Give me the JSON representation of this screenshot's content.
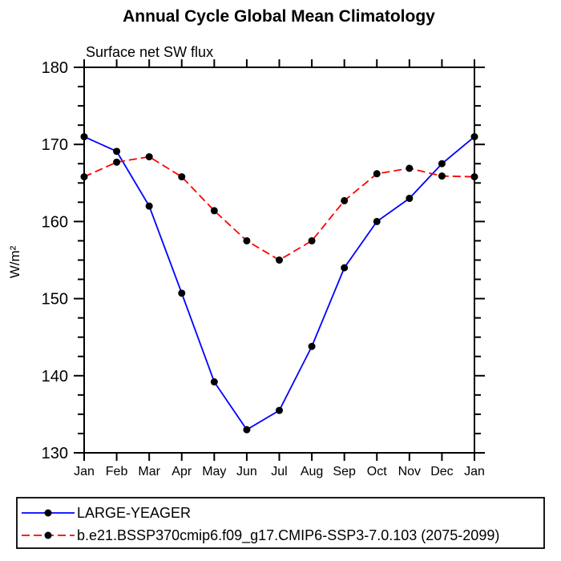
{
  "chart_data": {
    "type": "line",
    "title": "Annual Cycle Global Mean Climatology",
    "subtitle": "Surface net SW flux",
    "ylabel": "W/m²",
    "xlabel": "",
    "categories": [
      "Jan",
      "Feb",
      "Mar",
      "Apr",
      "May",
      "Jun",
      "Jul",
      "Aug",
      "Sep",
      "Oct",
      "Nov",
      "Dec",
      "Jan"
    ],
    "ylim": [
      130,
      180
    ],
    "ytick_interval": 10,
    "ytick_minor_interval": 2.5,
    "grid": false,
    "legend_position": "bottom",
    "axis_color": "#000000",
    "marker_color": "#000000",
    "series": [
      {
        "name": "LARGE-YEAGER",
        "color": "#0000ff",
        "line_style": "solid",
        "marker": "circle",
        "values": [
          171.0,
          169.1,
          162.0,
          150.7,
          139.2,
          133.0,
          135.5,
          143.8,
          154.0,
          160.0,
          163.0,
          167.5,
          171.0
        ]
      },
      {
        "name": "b.e21.BSSP370cmip6.f09_g17.CMIP6-SSP3-7.0.103 (2075-2099)",
        "color": "#ff0000",
        "line_style": "dashed",
        "marker": "circle",
        "values": [
          165.8,
          167.7,
          168.4,
          165.8,
          161.4,
          157.5,
          155.0,
          157.5,
          162.7,
          166.2,
          166.9,
          165.9,
          165.8
        ]
      }
    ]
  }
}
